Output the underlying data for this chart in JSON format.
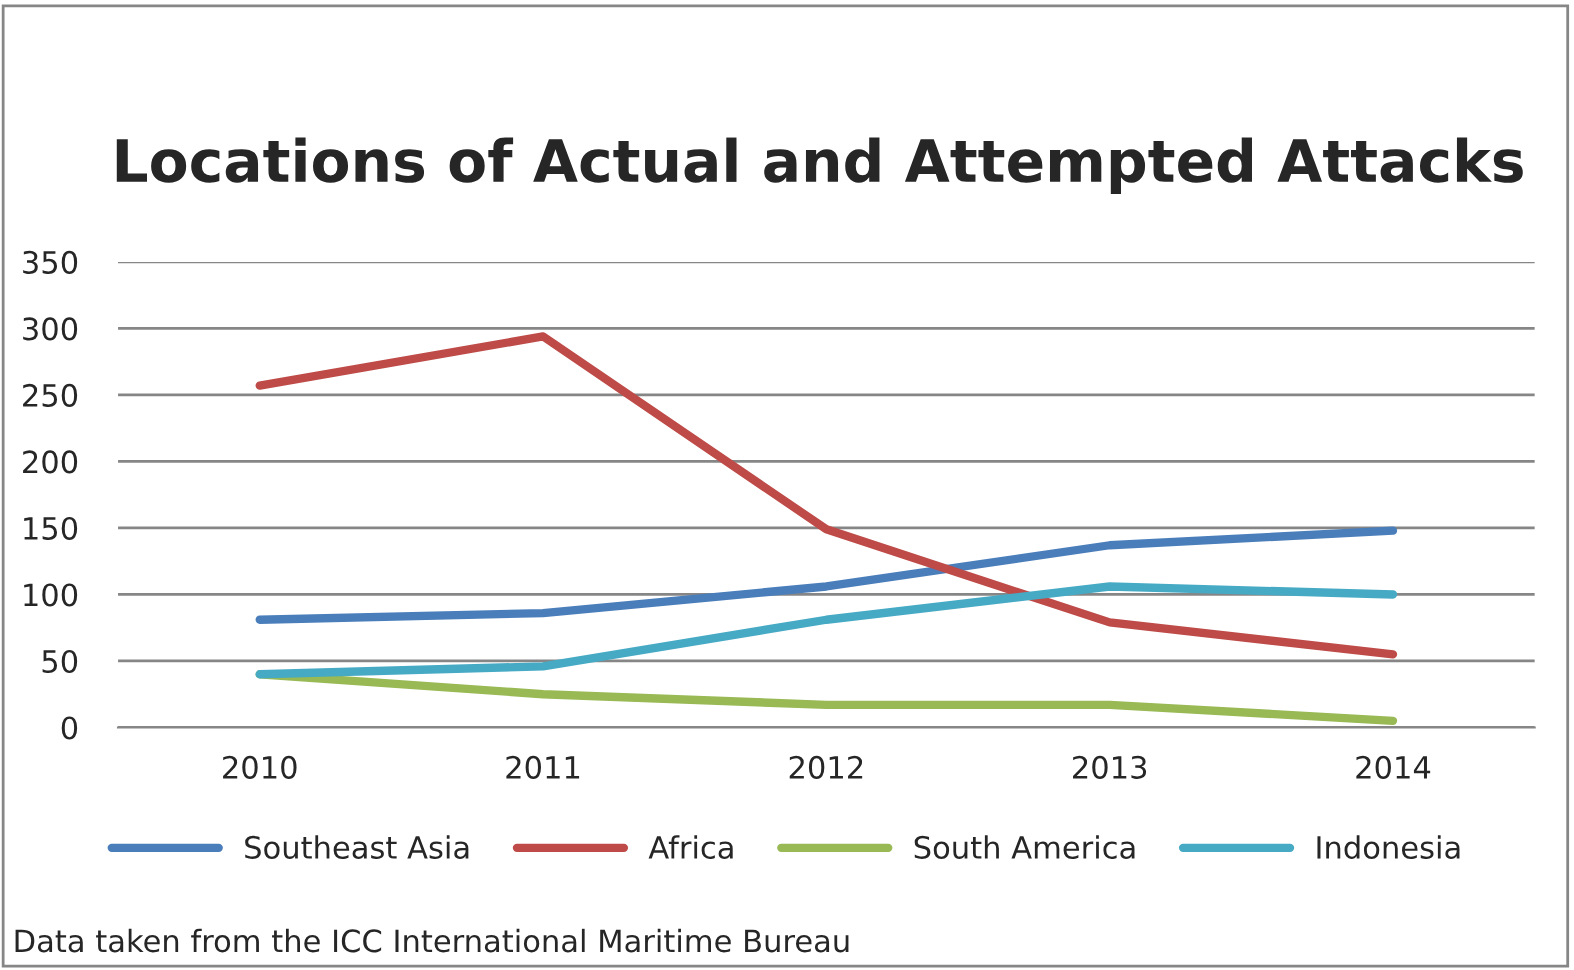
{
  "chart_data": {
    "type": "line",
    "title": "Locations of Actual and Attempted Attacks",
    "categories": [
      "2010",
      "2011",
      "2012",
      "2013",
      "2014"
    ],
    "series": [
      {
        "name": "Southeast Asia",
        "color": "#4a7ebb",
        "values": [
          81,
          86,
          106,
          137,
          148
        ]
      },
      {
        "name": "Africa",
        "color": "#be4b48",
        "values": [
          257,
          294,
          149,
          79,
          55
        ]
      },
      {
        "name": "South America",
        "color": "#98b954",
        "values": [
          40,
          25,
          17,
          17,
          5
        ]
      },
      {
        "name": "Indonesia",
        "color": "#46aac5",
        "values": [
          40,
          46,
          81,
          106,
          100
        ]
      }
    ],
    "ylim": [
      0,
      350
    ],
    "yticks": [
      0,
      50,
      100,
      150,
      200,
      250,
      300,
      350
    ],
    "grid": "y",
    "legend": "bottom",
    "marker": "none",
    "line_style": "solid",
    "annotations": [
      "Data taken from the ICC International Maritime Bureau"
    ]
  }
}
